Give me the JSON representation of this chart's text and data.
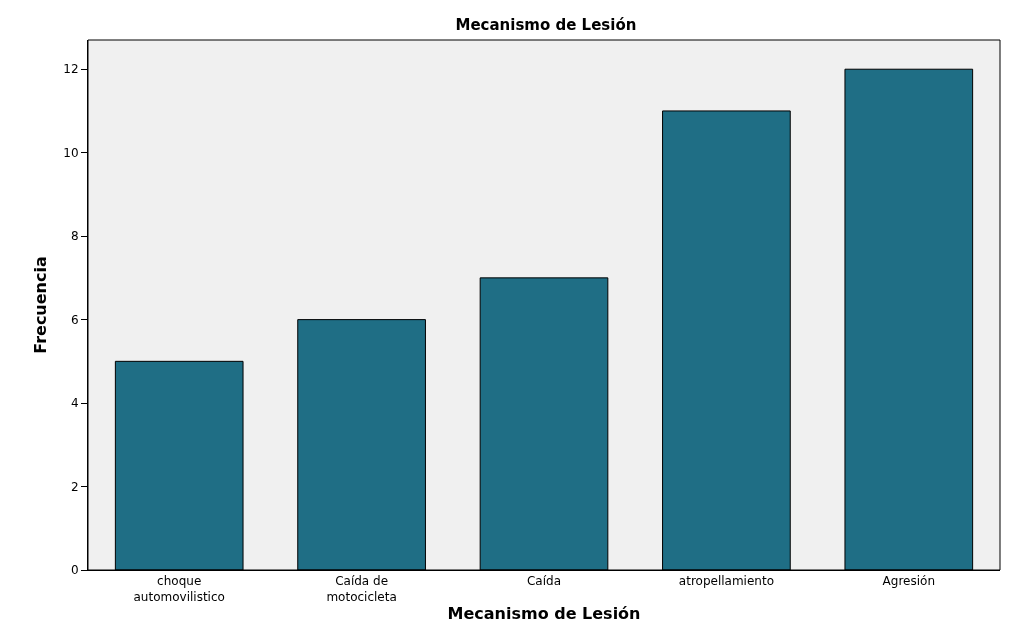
{
  "chart_data": {
    "type": "bar",
    "title": "Mecanismo de Lesión",
    "xlabel": "Mecanismo de Lesión",
    "ylabel": "Frecuencia",
    "categories": [
      "choque automovilistico",
      "Caída de motocicleta",
      "Caída",
      "atropellamiento",
      "Agresión"
    ],
    "values": [
      5,
      6,
      7,
      11,
      12
    ],
    "color": "#1f6e85",
    "ylim": [
      0,
      12.7
    ],
    "yticks": [
      0,
      2,
      4,
      6,
      8,
      10,
      12
    ],
    "grid": false
  }
}
